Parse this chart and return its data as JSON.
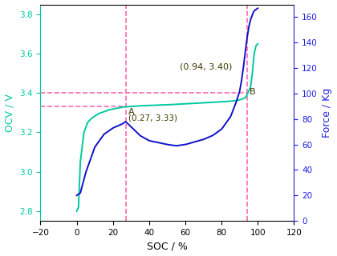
{
  "xlabel": "SOC / %",
  "ylabel_left": "OCV / V",
  "ylabel_right": "Force / Kg",
  "xlim": [
    -20,
    120
  ],
  "ylim_left": [
    2.75,
    3.85
  ],
  "ylim_right": [
    0,
    170
  ],
  "xticks": [
    -20,
    0,
    20,
    40,
    60,
    80,
    100,
    120
  ],
  "yticks_left": [
    2.8,
    3.0,
    3.2,
    3.4,
    3.6,
    3.8
  ],
  "yticks_right": [
    0,
    20,
    40,
    60,
    80,
    100,
    120,
    140,
    160
  ],
  "ocv_color": "#00C8A0",
  "force_color": "#1010CC",
  "dashed_color": "#FF69B4",
  "left_label_color": "#00C8A0",
  "right_label_color": "#2020DD",
  "annotation_color": "#3A3A00",
  "point_A_soc": 27,
  "point_A_ocv": 3.33,
  "point_B_soc": 94,
  "point_B_ocv": 3.4
}
